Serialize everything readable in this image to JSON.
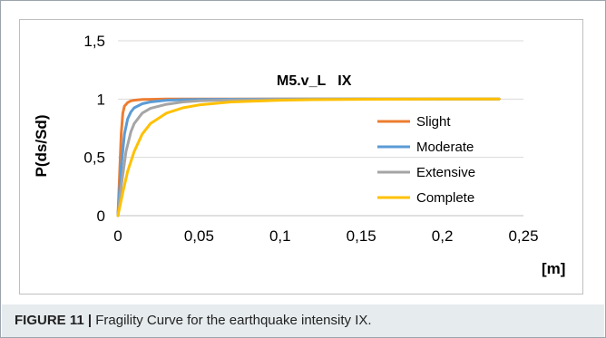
{
  "chart_data": {
    "type": "line",
    "title": "M5.v_L   IX",
    "xlabel": "[m]",
    "ylabel": "P(ds/Sd)",
    "xlim": [
      0,
      0.25
    ],
    "ylim": [
      0,
      1.5
    ],
    "x_ticks": [
      "0",
      "0,05",
      "0,1",
      "0,15",
      "0,2",
      "0,25"
    ],
    "y_ticks": [
      "0",
      "0,5",
      "1",
      "1,5"
    ],
    "grid": "horizontal",
    "legend_position": "right",
    "series": [
      {
        "name": "Slight",
        "color": "#ED7D31",
        "x": [
          0,
          0.001,
          0.002,
          0.003,
          0.004,
          0.006,
          0.008,
          0.01,
          0.015,
          0.02,
          0.03,
          0.05,
          0.1,
          0.15,
          0.2,
          0.235
        ],
        "y": [
          0,
          0.35,
          0.7,
          0.88,
          0.94,
          0.97,
          0.985,
          0.99,
          0.996,
          0.998,
          1.0,
          1.0,
          1.0,
          1.0,
          1.0,
          1.0
        ]
      },
      {
        "name": "Moderate",
        "color": "#5B9BD5",
        "x": [
          0,
          0.002,
          0.004,
          0.006,
          0.008,
          0.01,
          0.015,
          0.02,
          0.03,
          0.04,
          0.05,
          0.1,
          0.15,
          0.2,
          0.235
        ],
        "y": [
          0,
          0.42,
          0.7,
          0.83,
          0.89,
          0.925,
          0.96,
          0.975,
          0.99,
          0.995,
          0.997,
          1.0,
          1.0,
          1.0,
          1.0
        ]
      },
      {
        "name": "Extensive",
        "color": "#A5A5A5",
        "x": [
          0,
          0.002,
          0.005,
          0.008,
          0.01,
          0.015,
          0.02,
          0.03,
          0.04,
          0.05,
          0.07,
          0.1,
          0.15,
          0.2,
          0.235
        ],
        "y": [
          0,
          0.25,
          0.55,
          0.72,
          0.79,
          0.88,
          0.92,
          0.955,
          0.975,
          0.985,
          0.993,
          0.998,
          1.0,
          1.0,
          1.0
        ]
      },
      {
        "name": "Complete",
        "color": "#FFC000",
        "x": [
          0,
          0.003,
          0.006,
          0.01,
          0.015,
          0.02,
          0.03,
          0.04,
          0.05,
          0.07,
          0.1,
          0.12,
          0.15,
          0.2,
          0.235
        ],
        "y": [
          0,
          0.2,
          0.38,
          0.55,
          0.7,
          0.79,
          0.88,
          0.925,
          0.95,
          0.975,
          0.99,
          0.995,
          0.998,
          1.0,
          1.0
        ]
      }
    ]
  },
  "caption": {
    "label": "FIGURE 11 |",
    "text": " Fragility Curve for the earthquake intensity IX."
  }
}
